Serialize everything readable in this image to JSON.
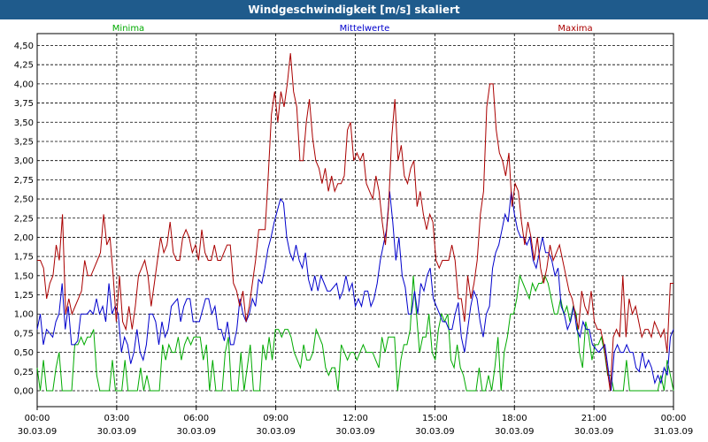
{
  "window": {
    "title": "Windgeschwindigkeit [m/s] skaliert"
  },
  "chart_data": {
    "type": "line",
    "title": "Windgeschwindigkeit [m/s] skaliert",
    "xlabel": "",
    "ylabel": "",
    "ylim": [
      0,
      4.6
    ],
    "yticks": [
      "0,00",
      "0,25",
      "0,50",
      "0,75",
      "1,00",
      "1,25",
      "1,50",
      "1,75",
      "2,00",
      "2,25",
      "2,50",
      "2,75",
      "3,00",
      "3,25",
      "3,50",
      "3,75",
      "4,00",
      "4,25",
      "4,50"
    ],
    "xlim": [
      0,
      24
    ],
    "xticks": [
      {
        "time": "00:00",
        "date": "30.03.09"
      },
      {
        "time": "03:00",
        "date": "30.03.09"
      },
      {
        "time": "06:00",
        "date": "30.03.09"
      },
      {
        "time": "09:00",
        "date": "30.03.09"
      },
      {
        "time": "12:00",
        "date": "30.03.09"
      },
      {
        "time": "15:00",
        "date": "30.03.09"
      },
      {
        "time": "18:00",
        "date": "30.03.09"
      },
      {
        "time": "21:00",
        "date": "30.03.09"
      },
      {
        "time": "00:00",
        "date": "31.03.09"
      }
    ],
    "grid": true,
    "legend_position": "top",
    "series": [
      {
        "name": "Minima",
        "color": "#00aa00",
        "values": [
          0.3,
          0.0,
          0.4,
          0.0,
          0.0,
          0.0,
          0.3,
          0.5,
          0.0,
          0.0,
          0.0,
          0.0,
          0.6,
          0.6,
          0.7,
          0.6,
          0.7,
          0.7,
          0.8,
          0.2,
          0.0,
          0.0,
          0.0,
          0.0,
          0.4,
          0.0,
          0.0,
          0.0,
          0.4,
          0.0,
          0.0,
          0.0,
          0.0,
          0.3,
          0.0,
          0.2,
          0.0,
          0.0,
          0.0,
          0.0,
          0.6,
          0.4,
          0.6,
          0.5,
          0.5,
          0.7,
          0.4,
          0.6,
          0.7,
          0.6,
          0.7,
          0.7,
          0.7,
          0.4,
          0.6,
          0.0,
          0.4,
          0.0,
          0.0,
          0.0,
          0.5,
          0.7,
          0.0,
          0.0,
          0.0,
          0.5,
          0.0,
          0.3,
          0.6,
          0.0,
          0.0,
          0.0,
          0.6,
          0.4,
          0.7,
          0.4,
          0.8,
          0.8,
          0.7,
          0.8,
          0.8,
          0.7,
          0.5,
          0.4,
          0.3,
          0.6,
          0.4,
          0.4,
          0.5,
          0.8,
          0.7,
          0.6,
          0.3,
          0.2,
          0.3,
          0.3,
          0.0,
          0.6,
          0.5,
          0.4,
          0.5,
          0.5,
          0.4,
          0.5,
          0.6,
          0.5,
          0.5,
          0.5,
          0.4,
          0.3,
          0.7,
          0.5,
          0.7,
          0.7,
          0.7,
          0.0,
          0.4,
          0.6,
          0.6,
          0.8,
          1.5,
          1.0,
          0.5,
          0.7,
          0.7,
          1.0,
          0.5,
          0.4,
          0.8,
          1.0,
          0.9,
          1.0,
          0.4,
          0.3,
          0.6,
          0.3,
          0.2,
          0.0,
          0.0,
          0.0,
          0.0,
          0.3,
          0.0,
          0.0,
          0.2,
          0.0,
          0.3,
          0.7,
          0.0,
          0.5,
          0.7,
          1.0,
          1.0,
          1.2,
          1.5,
          1.4,
          1.3,
          1.2,
          1.4,
          1.3,
          1.4,
          1.4,
          1.5,
          1.4,
          1.2,
          1.0,
          1.0,
          1.2,
          1.0,
          1.1,
          0.9,
          1.1,
          1.0,
          0.5,
          0.3,
          0.9,
          0.7,
          0.4,
          0.6,
          0.6,
          0.7,
          0.5,
          0.2,
          0.2,
          0.0,
          0.0,
          0.0,
          0.0,
          0.4,
          0.0,
          0.0,
          0.0,
          0.0,
          0.0,
          0.0,
          0.0,
          0.0,
          0.0,
          0.0,
          0.2,
          0.0,
          0.4,
          0.2,
          0.0
        ]
      },
      {
        "name": "Mittelwerte",
        "color": "#0000cc",
        "values": [
          0.8,
          1.0,
          0.6,
          0.8,
          0.75,
          0.7,
          0.9,
          1.0,
          1.4,
          0.8,
          1.1,
          0.6,
          0.6,
          0.65,
          1.0,
          1.0,
          1.0,
          1.05,
          1.0,
          1.2,
          1.0,
          1.1,
          0.9,
          1.4,
          1.0,
          1.1,
          1.0,
          0.5,
          0.7,
          0.6,
          0.35,
          0.5,
          0.8,
          0.5,
          0.4,
          0.6,
          1.0,
          1.0,
          0.9,
          0.6,
          0.9,
          0.7,
          0.8,
          1.1,
          1.15,
          1.2,
          0.9,
          1.1,
          1.2,
          1.2,
          0.9,
          0.9,
          0.9,
          1.05,
          1.2,
          1.2,
          1.0,
          1.1,
          0.8,
          0.8,
          0.65,
          0.9,
          0.6,
          0.6,
          0.8,
          1.2,
          1.0,
          0.9,
          1.0,
          1.2,
          1.1,
          1.45,
          1.4,
          1.6,
          1.85,
          2.0,
          2.2,
          2.35,
          2.5,
          2.45,
          2.0,
          1.8,
          1.7,
          1.9,
          1.7,
          1.6,
          1.8,
          1.45,
          1.3,
          1.5,
          1.3,
          1.5,
          1.4,
          1.3,
          1.3,
          1.35,
          1.4,
          1.2,
          1.3,
          1.5,
          1.3,
          1.4,
          1.1,
          1.2,
          1.1,
          1.3,
          1.3,
          1.1,
          1.2,
          1.4,
          1.7,
          1.9,
          2.1,
          2.6,
          2.2,
          1.7,
          2.0,
          1.5,
          1.35,
          1.0,
          1.0,
          1.3,
          1.0,
          1.4,
          1.3,
          1.5,
          1.6,
          1.2,
          1.1,
          1.0,
          0.9,
          0.9,
          0.8,
          0.8,
          1.0,
          1.15,
          0.7,
          0.5,
          0.8,
          1.1,
          1.3,
          1.2,
          0.9,
          0.7,
          1.0,
          1.1,
          1.6,
          1.8,
          1.9,
          2.1,
          2.3,
          2.2,
          2.6,
          2.3,
          2.1,
          2.0,
          2.0,
          1.9,
          2.0,
          1.7,
          1.6,
          1.8,
          2.0,
          1.8,
          1.8,
          1.7,
          1.5,
          1.6,
          1.1,
          1.0,
          0.8,
          0.9,
          1.1,
          0.8,
          0.7,
          0.9,
          0.8,
          0.8,
          0.6,
          0.55,
          0.5,
          0.55,
          0.6,
          0.3,
          0.0,
          0.5,
          0.6,
          0.5,
          0.5,
          0.6,
          0.5,
          0.5,
          0.3,
          0.25,
          0.5,
          0.3,
          0.4,
          0.3,
          0.1,
          0.2,
          0.1,
          0.3,
          0.2,
          0.7,
          0.8
        ]
      },
      {
        "name": "Maxima",
        "color": "#aa0000",
        "values": [
          1.7,
          1.7,
          1.6,
          1.2,
          1.4,
          1.5,
          1.9,
          1.7,
          2.3,
          1.0,
          1.2,
          1.0,
          1.1,
          1.2,
          1.3,
          1.7,
          1.5,
          1.5,
          1.6,
          1.7,
          1.8,
          2.3,
          1.9,
          2.0,
          1.5,
          0.9,
          1.5,
          0.9,
          0.8,
          1.1,
          0.8,
          1.1,
          1.5,
          1.6,
          1.7,
          1.5,
          1.1,
          1.4,
          1.7,
          2.0,
          1.8,
          1.9,
          2.2,
          1.8,
          1.7,
          1.7,
          2.0,
          2.1,
          2.0,
          1.8,
          1.9,
          1.7,
          2.1,
          1.8,
          1.7,
          1.7,
          1.9,
          1.7,
          1.7,
          1.8,
          1.9,
          1.9,
          1.4,
          1.3,
          1.1,
          1.3,
          0.9,
          1.1,
          1.4,
          1.7,
          2.1,
          2.1,
          2.1,
          2.8,
          3.6,
          3.9,
          3.5,
          3.9,
          3.7,
          4.0,
          4.4,
          3.9,
          3.7,
          3.0,
          3.0,
          3.5,
          3.8,
          3.3,
          3.0,
          2.9,
          2.7,
          2.9,
          2.6,
          2.8,
          2.6,
          2.7,
          2.7,
          2.8,
          3.4,
          3.5,
          3.0,
          3.1,
          3.0,
          3.1,
          2.7,
          2.6,
          2.5,
          2.8,
          2.6,
          2.2,
          1.9,
          2.4,
          3.3,
          3.8,
          3.0,
          3.2,
          2.8,
          2.7,
          2.9,
          3.0,
          2.4,
          2.6,
          2.3,
          2.1,
          2.3,
          2.2,
          1.7,
          1.6,
          1.7,
          1.7,
          1.7,
          1.9,
          1.7,
          1.2,
          1.2,
          0.9,
          1.5,
          1.2,
          1.4,
          1.7,
          2.3,
          2.6,
          3.7,
          4.0,
          4.0,
          3.4,
          3.1,
          3.0,
          2.8,
          3.1,
          2.4,
          2.7,
          2.6,
          2.2,
          1.9,
          2.2,
          2.0,
          1.7,
          2.0,
          1.6,
          1.4,
          1.6,
          1.9,
          1.7,
          1.8,
          1.9,
          1.7,
          1.5,
          1.3,
          1.2,
          1.0,
          0.8,
          1.3,
          1.1,
          1.0,
          1.3,
          0.9,
          0.8,
          0.8,
          0.6,
          0.3,
          0.0,
          0.7,
          0.8,
          0.7,
          1.5,
          0.7,
          1.2,
          1.0,
          1.1,
          0.9,
          0.7,
          0.8,
          0.8,
          0.7,
          0.9,
          0.8,
          0.7,
          0.8,
          0.5,
          1.4,
          1.4
        ]
      }
    ]
  }
}
